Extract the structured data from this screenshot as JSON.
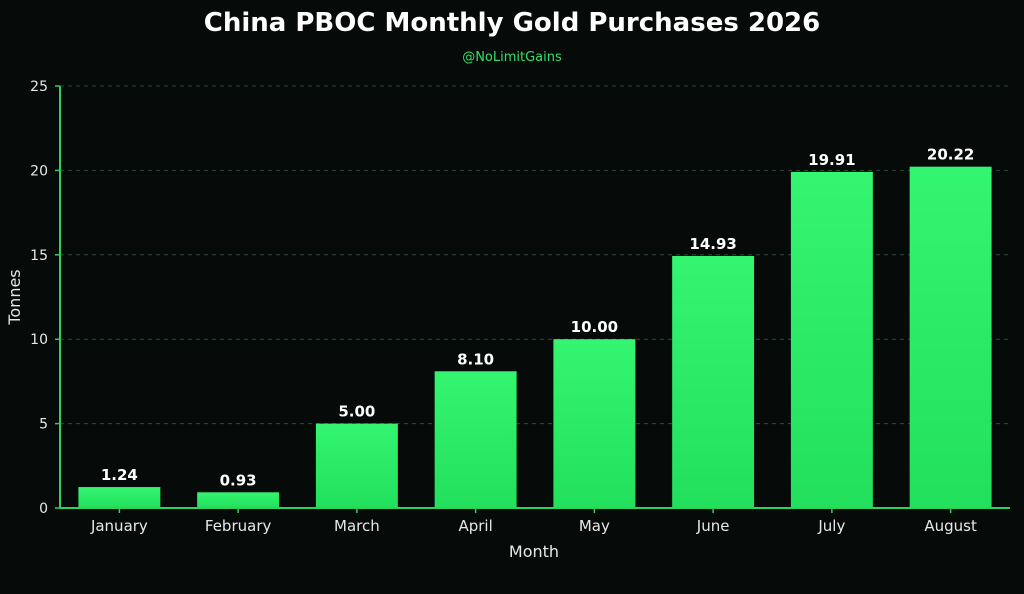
{
  "header": {
    "title": "China PBOC Monthly Gold Purchases 2026",
    "subtitle": "@NoLimitGains"
  },
  "colors": {
    "background": "#060a08",
    "bar": "#2ff06a",
    "axis": "#2fd05e",
    "grid": "#2f4a38",
    "text": "#e8e8e8",
    "subtitle": "#32e06a"
  },
  "chart_data": {
    "type": "bar",
    "title": "China PBOC Monthly Gold Purchases 2026",
    "subtitle": "@NoLimitGains",
    "xlabel": "Month",
    "ylabel": "Tonnes",
    "categories": [
      "January",
      "February",
      "March",
      "April",
      "May",
      "June",
      "July",
      "August"
    ],
    "values": [
      1.24,
      0.93,
      5.0,
      8.1,
      10.0,
      14.93,
      19.91,
      20.22
    ],
    "data_labels": [
      "1.24",
      "0.93",
      "5.00",
      "8.10",
      "10.00",
      "14.93",
      "19.91",
      "20.22"
    ],
    "ylim": [
      0,
      25
    ],
    "yticks": [
      0,
      5,
      10,
      15,
      20,
      25
    ],
    "grid": "horizontal dashed",
    "legend": "none"
  }
}
